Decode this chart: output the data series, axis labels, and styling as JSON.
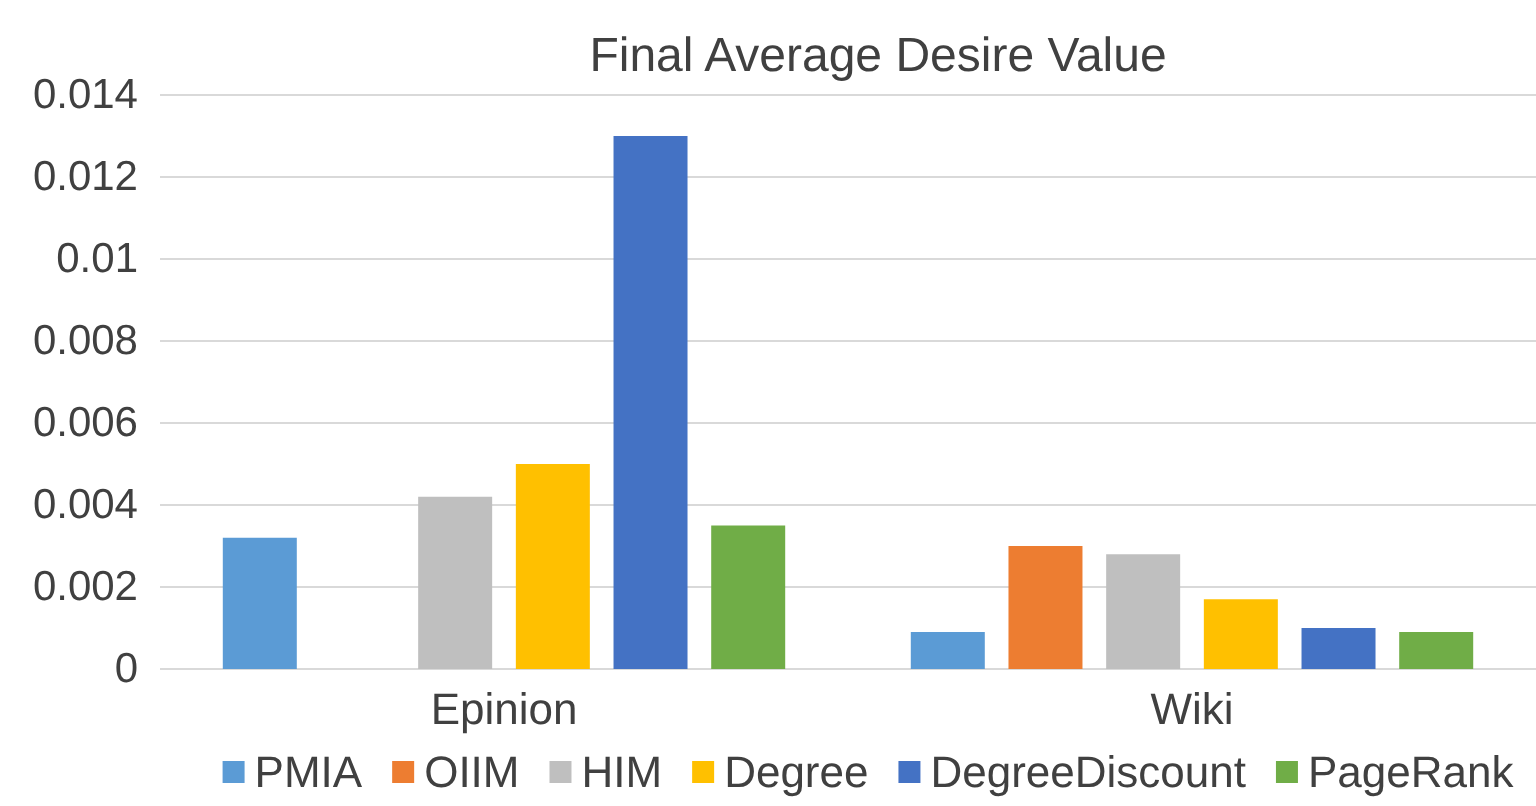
{
  "chart_data": {
    "type": "bar",
    "title": "Final Average Desire Value",
    "categories": [
      "Epinion",
      "Wiki"
    ],
    "series": [
      {
        "name": "PMIA",
        "color": "#5b9bd5",
        "values": [
          0.0032,
          0.0009
        ]
      },
      {
        "name": "OIIM",
        "color": "#ed7d31",
        "values": [
          null,
          0.003
        ]
      },
      {
        "name": "HIM",
        "color": "#bfbfbf",
        "values": [
          0.0042,
          0.0028
        ]
      },
      {
        "name": "Degree",
        "color": "#ffc000",
        "values": [
          0.005,
          0.0017
        ]
      },
      {
        "name": "DegreeDiscount",
        "color": "#4472c4",
        "values": [
          0.013,
          0.001
        ]
      },
      {
        "name": "PageRank",
        "color": "#70ad47",
        "values": [
          0.0035,
          0.0009
        ]
      }
    ],
    "ylim": [
      0,
      0.014
    ],
    "yticks": [
      0,
      0.002,
      0.004,
      0.006,
      0.008,
      0.01,
      0.012,
      0.014
    ],
    "grid": "y",
    "legend": "bottom"
  }
}
